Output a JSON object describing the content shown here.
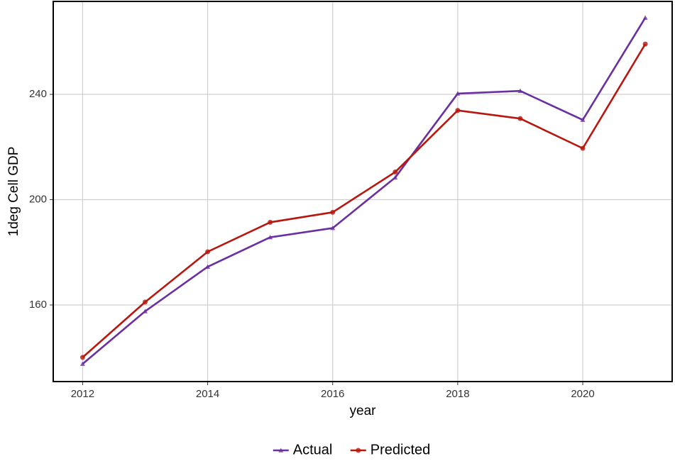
{
  "chart_data": {
    "type": "line",
    "x_label": "year",
    "y_label": "1deg Cell GDP",
    "x": [
      2012,
      2013,
      2014,
      2015,
      2016,
      2017,
      2018,
      2019,
      2020,
      2021
    ],
    "series": [
      {
        "name": "Actual",
        "color": "#6a2fa0",
        "marker": "triangle",
        "values": [
          137.6,
          157.6,
          174.5,
          185.7,
          189.2,
          208.4,
          240.3,
          241.3,
          230.3,
          269.1
        ]
      },
      {
        "name": "Predicted",
        "color": "#b8170f",
        "marker": "circle",
        "values": [
          140.1,
          161.1,
          180.2,
          191.4,
          195.2,
          210.5,
          233.9,
          230.8,
          219.5,
          259.1
        ]
      }
    ],
    "xlim": [
      2011.53,
      2021.43
    ],
    "ylim": [
      130.9,
      275.3
    ],
    "xticks": [
      2012,
      2014,
      2016,
      2018,
      2020
    ],
    "yticks": [
      160,
      200,
      240
    ],
    "grid": true,
    "legend": "bottom"
  }
}
